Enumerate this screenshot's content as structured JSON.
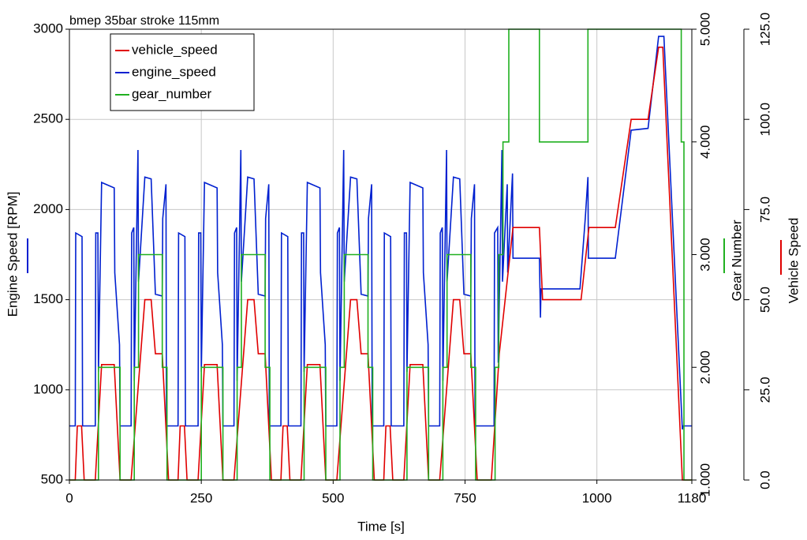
{
  "chart_data": {
    "type": "line",
    "title": "bmep 35bar stroke 115mm",
    "xlabel": "Time [s]",
    "ylabel": "Engine Speed [RPM]",
    "y2label": "Gear Number",
    "y3label": "Vehicle Speed",
    "xlim": [
      0,
      1180
    ],
    "xticks": [
      0,
      250,
      500,
      750,
      1000,
      1180
    ],
    "ylim": [
      500,
      3000
    ],
    "yticks": [
      500,
      1000,
      1500,
      2000,
      2500,
      3000
    ],
    "y2lim": [
      1,
      5
    ],
    "y2ticks": [
      {
        "value": 1,
        "label": "1.000"
      },
      {
        "value": 2,
        "label": "2.000"
      },
      {
        "value": 3,
        "label": "3.000"
      },
      {
        "value": 4,
        "label": "4.000"
      },
      {
        "value": 5,
        "label": "5.000"
      }
    ],
    "y3lim": [
      0,
      125
    ],
    "y3ticks": [
      {
        "value": 0,
        "label": "0.0"
      },
      {
        "value": 25,
        "label": "25.0"
      },
      {
        "value": 50,
        "label": "50.0"
      },
      {
        "value": 75,
        "label": "75.0"
      },
      {
        "value": 100,
        "label": "100.0"
      },
      {
        "value": 125,
        "label": "125.0"
      }
    ],
    "grid": true,
    "legend": "upper left",
    "series": [
      {
        "name": "vehicle_speed",
        "color": "#e00000",
        "axis": "y3",
        "x": [
          0,
          11,
          15,
          23,
          28,
          49,
          61,
          85,
          96,
          117,
          143,
          155,
          163,
          176,
          188,
          195,
          206,
          210,
          218,
          223,
          244,
          256,
          280,
          291,
          312,
          338,
          350,
          358,
          371,
          383,
          390,
          401,
          405,
          413,
          418,
          439,
          451,
          475,
          486,
          507,
          533,
          545,
          553,
          566,
          578,
          585,
          596,
          600,
          608,
          613,
          634,
          646,
          670,
          681,
          702,
          728,
          740,
          748,
          761,
          773,
          780,
          800,
          815,
          841,
          891,
          897,
          970,
          985,
          1035,
          1065,
          1097,
          1117,
          1125,
          1162,
          1180
        ],
        "values": [
          0,
          0,
          15,
          15,
          0,
          0,
          32,
          32,
          0,
          0,
          50,
          50,
          35,
          35,
          0,
          0,
          0,
          15,
          15,
          0,
          0,
          32,
          32,
          0,
          0,
          50,
          50,
          35,
          35,
          0,
          0,
          0,
          15,
          15,
          0,
          0,
          32,
          32,
          0,
          0,
          50,
          50,
          35,
          35,
          0,
          0,
          0,
          15,
          15,
          0,
          0,
          32,
          32,
          0,
          0,
          50,
          50,
          35,
          35,
          0,
          0,
          0,
          35,
          70,
          70,
          50,
          50,
          70,
          70,
          100,
          100,
          120,
          120,
          0,
          0
        ]
      },
      {
        "name": "engine_speed",
        "color": "#0020d0",
        "axis": "y",
        "x": [
          0,
          11,
          12,
          24,
          25,
          49,
          50,
          54,
          55,
          61,
          85,
          86,
          95,
          96,
          117,
          118,
          122,
          123,
          130,
          131,
          143,
          155,
          163,
          176,
          177,
          183,
          184,
          195,
          206,
          207,
          219,
          220,
          244,
          245,
          249,
          250,
          256,
          280,
          281,
          290,
          291,
          312,
          313,
          317,
          318,
          325,
          326,
          338,
          350,
          358,
          371,
          372,
          378,
          379,
          390,
          401,
          402,
          414,
          415,
          439,
          440,
          444,
          445,
          451,
          475,
          476,
          485,
          486,
          507,
          508,
          512,
          513,
          520,
          521,
          533,
          545,
          553,
          566,
          567,
          573,
          574,
          585,
          596,
          597,
          609,
          610,
          634,
          635,
          639,
          640,
          646,
          670,
          671,
          680,
          681,
          702,
          703,
          707,
          708,
          715,
          716,
          728,
          740,
          748,
          761,
          762,
          768,
          769,
          780,
          805,
          806,
          812,
          813,
          820,
          821,
          830,
          831,
          840,
          841,
          891,
          893,
          894,
          968,
          978,
          983,
          984,
          1035,
          1065,
          1097,
          1117,
          1127,
          1162,
          1163,
          1180
        ],
        "values": [
          800,
          800,
          1870,
          1850,
          800,
          800,
          1870,
          1870,
          1100,
          2150,
          2120,
          1650,
          1250,
          800,
          800,
          1870,
          1900,
          1050,
          2330,
          1600,
          2180,
          2170,
          1530,
          1520,
          1950,
          2140,
          800,
          800,
          800,
          1870,
          1850,
          800,
          800,
          1870,
          1870,
          1100,
          2150,
          2120,
          1650,
          1250,
          800,
          800,
          1870,
          1900,
          1050,
          2330,
          1600,
          2180,
          2170,
          1530,
          1520,
          1950,
          2140,
          800,
          800,
          800,
          1870,
          1850,
          800,
          800,
          1870,
          1870,
          1100,
          2150,
          2120,
          1650,
          1250,
          800,
          800,
          1870,
          1900,
          1050,
          2330,
          1600,
          2180,
          2170,
          1530,
          1520,
          1950,
          2140,
          800,
          800,
          800,
          1870,
          1850,
          800,
          800,
          1870,
          1870,
          1100,
          2150,
          2120,
          1650,
          1250,
          800,
          800,
          1870,
          1900,
          1050,
          2330,
          1600,
          2180,
          2170,
          1530,
          1520,
          1950,
          2140,
          800,
          800,
          800,
          1870,
          1900,
          1150,
          2330,
          1600,
          2140,
          1650,
          2200,
          1730,
          1730,
          1400,
          1560,
          1560,
          1950,
          2180,
          1730,
          1730,
          2440,
          2450,
          2960,
          2960,
          780,
          800,
          800
        ]
      },
      {
        "name": "gear_number",
        "color": "#20b020",
        "axis": "y2",
        "x": [
          0,
          55,
          55,
          96,
          96,
          123,
          123,
          131,
          131,
          176,
          176,
          185,
          185,
          195,
          250,
          250,
          291,
          291,
          318,
          318,
          326,
          326,
          371,
          371,
          380,
          380,
          390,
          445,
          445,
          486,
          486,
          513,
          513,
          521,
          521,
          566,
          566,
          575,
          575,
          585,
          640,
          640,
          681,
          681,
          708,
          708,
          716,
          716,
          761,
          761,
          770,
          770,
          780,
          807,
          807,
          814,
          814,
          822,
          822,
          833,
          833,
          891,
          891,
          983,
          983,
          1160,
          1160,
          1165,
          1165,
          1180
        ],
        "values": [
          1,
          1,
          2,
          2,
          1,
          1,
          2,
          2,
          3,
          3,
          2,
          2,
          1,
          1,
          1,
          2,
          2,
          1,
          1,
          2,
          2,
          3,
          3,
          2,
          2,
          1,
          1,
          1,
          2,
          2,
          1,
          1,
          2,
          2,
          3,
          3,
          2,
          2,
          1,
          1,
          1,
          2,
          2,
          1,
          1,
          2,
          2,
          3,
          3,
          2,
          2,
          1,
          1,
          1,
          2,
          2,
          3,
          3,
          4,
          4,
          5,
          5,
          4,
          4,
          5,
          5,
          4,
          4,
          1,
          1
        ]
      }
    ]
  }
}
